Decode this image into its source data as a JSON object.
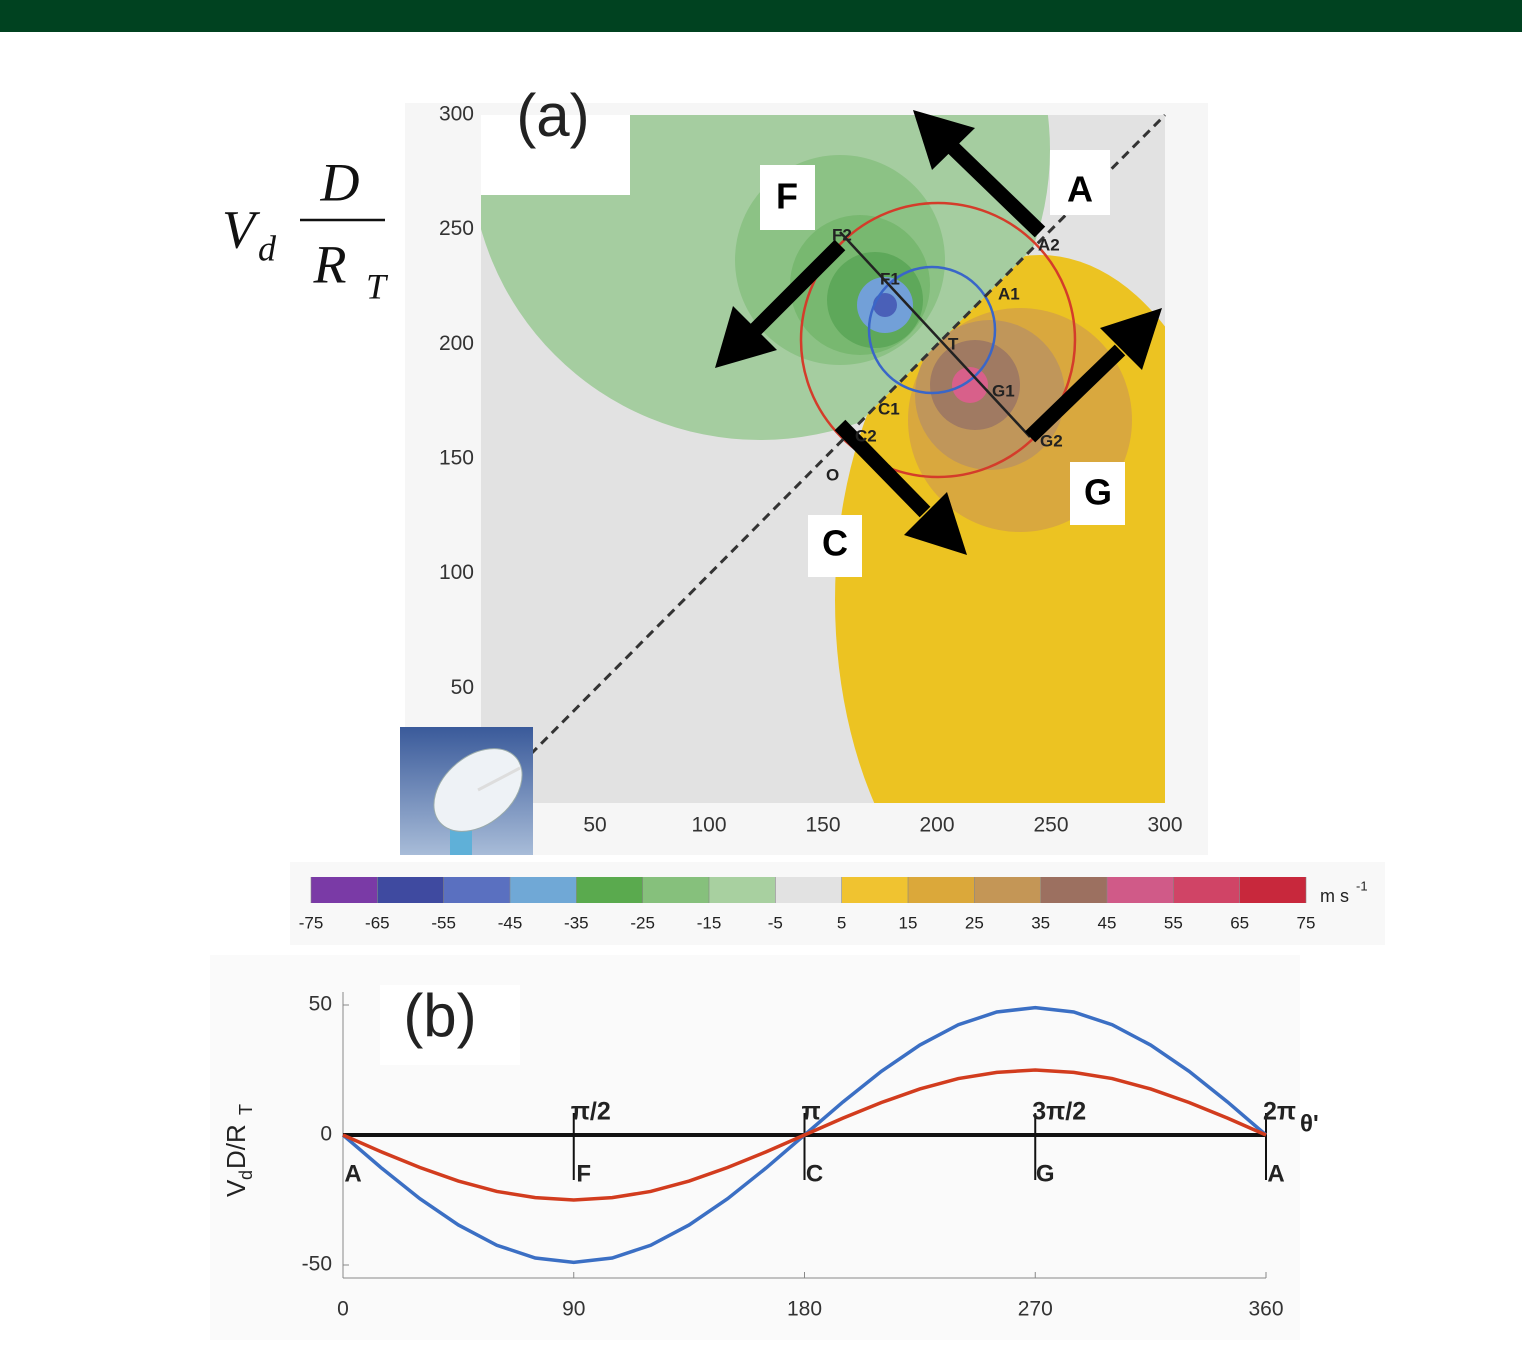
{
  "chart_data": [
    {
      "type": "contour",
      "title": "(a)",
      "ylabel": {
        "main": "V",
        "main_sub": "d",
        "numerator": "D",
        "denominator": "R",
        "denominator_sub": "T"
      },
      "xlim": [
        0,
        300
      ],
      "ylim": [
        0,
        300
      ],
      "xticks": [
        50,
        100,
        150,
        200,
        250,
        300
      ],
      "yticks": [
        50,
        100,
        150,
        200,
        250,
        300
      ],
      "point_labels": [
        "F2",
        "F1",
        "A1",
        "A2",
        "T",
        "G1",
        "G2",
        "C1",
        "C2",
        "O"
      ],
      "arrow_labels": [
        "F",
        "A",
        "G",
        "C"
      ],
      "colorbar": {
        "lim": [
          -75,
          75
        ],
        "ticks": [
          -75,
          -65,
          -55,
          -45,
          -35,
          -25,
          -15,
          -5,
          5,
          15,
          25,
          35,
          45,
          55,
          65,
          75
        ],
        "colors": [
          "#7a3aa6",
          "#3f4aa0",
          "#5a70c0",
          "#70a8d6",
          "#5aaa4e",
          "#86c07c",
          "#a8d0a0",
          "#e2e2e2",
          "#f0c330",
          "#dba83a",
          "#c49656",
          "#9c7060",
          "#d05a88",
          "#d04466",
          "#c8283c"
        ],
        "unit": "m s",
        "unit_exponent": "-1"
      }
    },
    {
      "type": "line",
      "title": "(b)",
      "ylabel": {
        "main": "V",
        "main_sub": "d",
        "middle": "D/R",
        "end_sub": "T"
      },
      "xlim": [
        0,
        360
      ],
      "ylim": [
        -55,
        55
      ],
      "xticks": [
        0,
        90,
        180,
        270,
        360
      ],
      "yticks": [
        -50,
        0,
        50
      ],
      "x": [
        0,
        15,
        30,
        45,
        60,
        75,
        90,
        105,
        120,
        135,
        150,
        165,
        180,
        195,
        210,
        225,
        240,
        255,
        270,
        285,
        300,
        315,
        330,
        345,
        360
      ],
      "series": [
        {
          "color": "#3b6fc4",
          "values": [
            0,
            -12.7,
            -24.5,
            -34.6,
            -42.4,
            -47.3,
            -49,
            -47.3,
            -42.4,
            -34.6,
            -24.5,
            -12.7,
            0,
            12.7,
            24.5,
            34.6,
            42.4,
            47.3,
            49,
            47.3,
            42.4,
            34.6,
            24.5,
            12.7,
            0
          ]
        },
        {
          "color": "#d23c1e",
          "values": [
            0,
            -6.5,
            -12.5,
            -17.7,
            -21.7,
            -24.1,
            -25,
            -24.1,
            -21.7,
            -17.7,
            -12.5,
            -6.5,
            0,
            6.5,
            12.5,
            17.7,
            21.7,
            24.1,
            25,
            24.1,
            21.7,
            17.7,
            12.5,
            6.5,
            0
          ]
        }
      ],
      "angle_marks": [
        {
          "x": 90,
          "label": "π/2"
        },
        {
          "x": 180,
          "label": "π"
        },
        {
          "x": 270,
          "label": "3π/2"
        },
        {
          "x": 360,
          "label": "2π"
        }
      ],
      "point_marks": [
        {
          "x": 0,
          "label": "A"
        },
        {
          "x": 90,
          "label": "F"
        },
        {
          "x": 180,
          "label": "C"
        },
        {
          "x": 270,
          "label": "G"
        },
        {
          "x": 360,
          "label": "A"
        }
      ],
      "axis_symbol": "θ'"
    }
  ]
}
